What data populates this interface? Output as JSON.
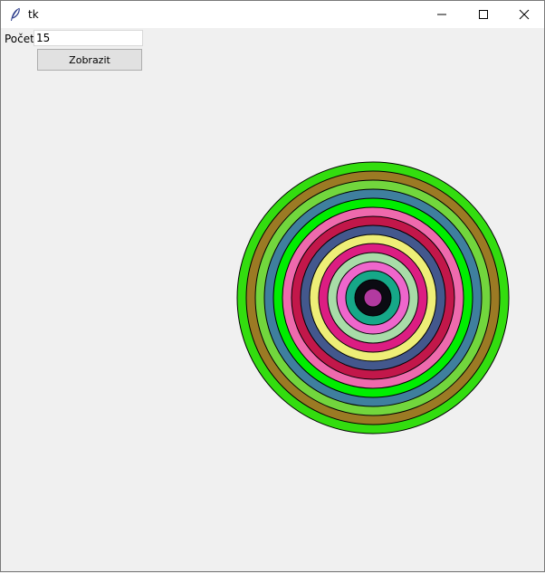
{
  "window": {
    "title": "tk",
    "controls": [
      "minimize-icon",
      "maximize-icon",
      "close-icon"
    ]
  },
  "form": {
    "count_label": "Počet",
    "count_value": "15",
    "show_button_label": "Zobrazit"
  },
  "drawing": {
    "ring_colors": [
      "#33dd0f",
      "#9b7a24",
      "#72d63d",
      "#3f7f9e",
      "#00ee00",
      "#ee6aad",
      "#c2174a",
      "#43588d",
      "#eeee77",
      "#dc1d82",
      "#a8dca8",
      "#ee66cc",
      "#16a888",
      "#0b0b12",
      "#b23aa0"
    ],
    "outline_color": "#000000"
  }
}
